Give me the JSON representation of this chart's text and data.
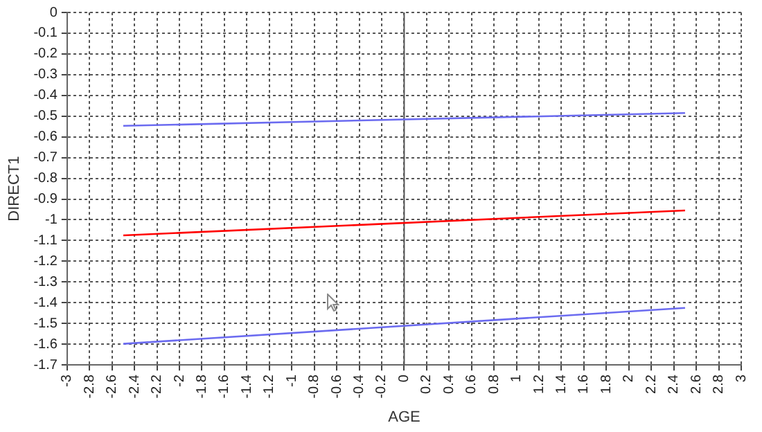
{
  "chart_data": {
    "type": "line",
    "xlabel": "AGE",
    "ylabel": "DIRECT1",
    "xlim": [
      -3,
      3
    ],
    "xticks": [
      -3,
      -2.8,
      -2.6,
      -2.4,
      -2.2,
      -2,
      -1.8,
      -1.6,
      -1.4,
      -1.2,
      -1,
      -0.8,
      -0.6,
      -0.4,
      -0.2,
      0,
      0.2,
      0.4,
      0.6,
      0.8,
      1,
      1.2,
      1.4,
      1.6,
      1.8,
      2,
      2.2,
      2.4,
      2.6,
      2.8,
      3
    ],
    "ylim": [
      -1.7,
      0
    ],
    "yticks": [
      -1.7,
      -1.6,
      -1.5,
      -1.4,
      -1.3,
      -1.2,
      -1.1,
      -1,
      -0.9,
      -0.8,
      -0.7,
      -0.6,
      -0.5,
      -0.4,
      -0.3,
      -0.2,
      -0.1,
      0
    ],
    "x": [
      -2.5,
      2.5
    ],
    "series": [
      {
        "color": "#6b6bf0",
        "values": [
          -0.547,
          -0.485
        ]
      },
      {
        "color": "#ff0000",
        "values": [
          -1.075,
          -0.955
        ]
      },
      {
        "color": "#6b6bf0",
        "values": [
          -1.598,
          -1.425
        ]
      }
    ],
    "ref_lines": [
      {
        "axis": "x",
        "value": 0,
        "color": "#555555"
      }
    ],
    "grid": true,
    "legend": false,
    "marker": "none",
    "line_style": "solid"
  }
}
